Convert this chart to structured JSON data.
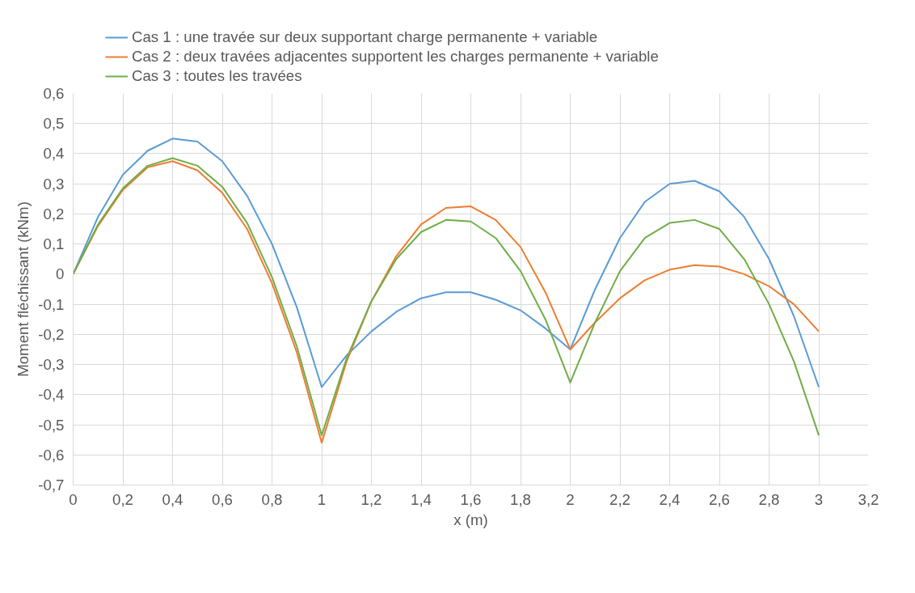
{
  "chart_data": {
    "type": "line",
    "xlabel": "x (m)",
    "ylabel": "Moment fléchissant (kNm)",
    "x": [
      0,
      0.1,
      0.2,
      0.3,
      0.4,
      0.5,
      0.6,
      0.7,
      0.8,
      0.9,
      1.0,
      1.1,
      1.2,
      1.3,
      1.4,
      1.5,
      1.6,
      1.7,
      1.8,
      1.9,
      2.0,
      2.1,
      2.2,
      2.3,
      2.4,
      2.5,
      2.6,
      2.7,
      2.8,
      2.9,
      3.0
    ],
    "series": [
      {
        "name": "Cas 1 : une travée sur deux supportant charge permanente + variable",
        "color": "#5b9bd5",
        "values": [
          0,
          0.19,
          0.33,
          0.41,
          0.45,
          0.44,
          0.375,
          0.26,
          0.1,
          -0.11,
          -0.375,
          -0.27,
          -0.19,
          -0.125,
          -0.08,
          -0.06,
          -0.06,
          -0.085,
          -0.12,
          -0.18,
          -0.25,
          -0.05,
          0.12,
          0.24,
          0.3,
          0.31,
          0.275,
          0.19,
          0.05,
          -0.14,
          -0.375
        ]
      },
      {
        "name": "Cas 2 : deux travées adjacentes supportent les charges permanente + variable",
        "color": "#ed7d31",
        "values": [
          0,
          0.16,
          0.28,
          0.355,
          0.375,
          0.345,
          0.27,
          0.15,
          -0.03,
          -0.26,
          -0.56,
          -0.29,
          -0.09,
          0.06,
          0.165,
          0.22,
          0.225,
          0.18,
          0.09,
          -0.06,
          -0.25,
          -0.16,
          -0.08,
          -0.02,
          0.015,
          0.03,
          0.025,
          0.0,
          -0.04,
          -0.1,
          -0.19
        ]
      },
      {
        "name": "Cas 3 : toutes les travées",
        "color": "#70ad47",
        "values": [
          0,
          0.165,
          0.285,
          0.36,
          0.385,
          0.36,
          0.29,
          0.17,
          -0.01,
          -0.24,
          -0.535,
          -0.28,
          -0.09,
          0.05,
          0.14,
          0.18,
          0.175,
          0.12,
          0.01,
          -0.15,
          -0.36,
          -0.16,
          0.01,
          0.12,
          0.17,
          0.18,
          0.15,
          0.05,
          -0.1,
          -0.29,
          -0.535
        ]
      }
    ],
    "xlim": [
      0,
      3.2
    ],
    "xticks": [
      0,
      {
        "value": 0.2,
        "label": "0,2"
      },
      {
        "value": 0.4,
        "label": "0,4"
      },
      {
        "value": 0.6,
        "label": "0,6"
      },
      {
        "value": 0.8,
        "label": "0,8"
      },
      1,
      {
        "value": 1.2,
        "label": "1,2"
      },
      {
        "value": 1.4,
        "label": "1,4"
      },
      {
        "value": 1.6,
        "label": "1,6"
      },
      {
        "value": 1.8,
        "label": "1,8"
      },
      2,
      {
        "value": 2.2,
        "label": "2,2"
      },
      {
        "value": 2.4,
        "label": "2,4"
      },
      {
        "value": 2.6,
        "label": "2,6"
      },
      {
        "value": 2.8,
        "label": "2,8"
      },
      3,
      {
        "value": 3.2,
        "label": "3,2"
      }
    ],
    "ylim": [
      -0.7,
      0.6
    ],
    "yticks": [
      {
        "value": -0.7,
        "label": "-0,7"
      },
      {
        "value": -0.6,
        "label": "-0,6"
      },
      {
        "value": -0.5,
        "label": "-0,5"
      },
      {
        "value": -0.4,
        "label": "-0,4"
      },
      {
        "value": -0.3,
        "label": "-0,3"
      },
      {
        "value": -0.2,
        "label": "-0,2"
      },
      {
        "value": -0.1,
        "label": "-0,1"
      },
      0,
      {
        "value": 0.1,
        "label": "0,1"
      },
      {
        "value": 0.2,
        "label": "0,2"
      },
      {
        "value": 0.3,
        "label": "0,3"
      },
      {
        "value": 0.4,
        "label": "0,4"
      },
      {
        "value": 0.5,
        "label": "0,5"
      },
      {
        "value": 0.6,
        "label": "0,6"
      }
    ],
    "grid": true,
    "legend": "top",
    "marker": "none",
    "line_style": "solid"
  }
}
